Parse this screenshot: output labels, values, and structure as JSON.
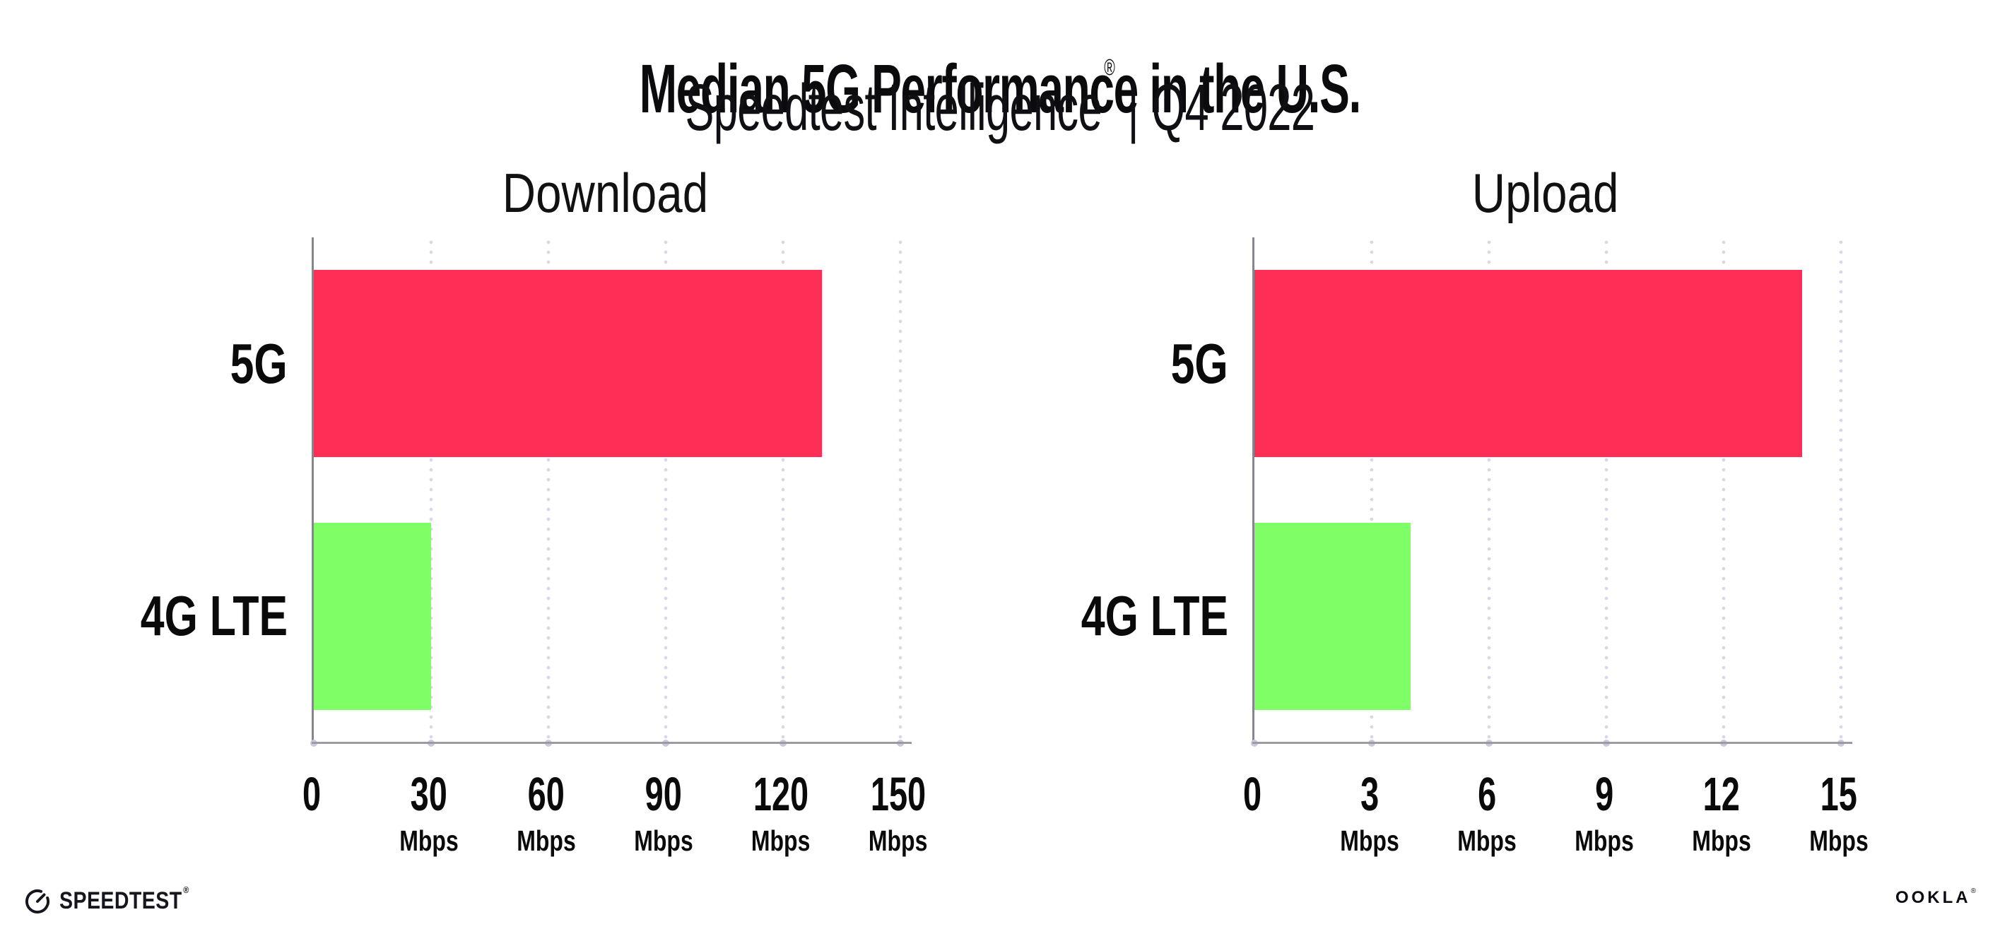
{
  "header": {
    "title": "Median 5G Performance in the U.S.",
    "subtitle": {
      "brand": "Speedtest Intelligence",
      "registered": "®",
      "separator": "|",
      "period": "Q4 2022"
    }
  },
  "chart_data": [
    {
      "type": "bar",
      "orientation": "horizontal",
      "title": "Download",
      "categories": [
        "5G",
        "4G LTE"
      ],
      "values": [
        130,
        30
      ],
      "unit": "Mbps",
      "xlim": [
        0,
        150
      ],
      "xticks": [
        0,
        30,
        60,
        90,
        120,
        150
      ],
      "xtick_unit": "Mbps",
      "colors": [
        "#FF2E56",
        "#7FFE65"
      ],
      "grid": "dotted-vertical",
      "legend": "none"
    },
    {
      "type": "bar",
      "orientation": "horizontal",
      "title": "Upload",
      "categories": [
        "5G",
        "4G LTE"
      ],
      "values": [
        14,
        4
      ],
      "unit": "Mbps",
      "xlim": [
        0,
        15
      ],
      "xticks": [
        0,
        3,
        6,
        9,
        12,
        15
      ],
      "xtick_unit": "Mbps",
      "colors": [
        "#FF2E56",
        "#7FFE65"
      ],
      "grid": "dotted-vertical",
      "legend": "none"
    }
  ],
  "footer": {
    "speedtest": {
      "label": "SPEEDTEST",
      "mark": "®"
    },
    "ookla": {
      "label": "OOKLA",
      "mark": "®"
    }
  },
  "colors": {
    "bar_5g": "#FF2E56",
    "bar_4g_lte": "#7FFE65",
    "axis_line": "#9b9ba3",
    "y_axis_line": "#85858d",
    "gridline_dots": "#d7d8e5",
    "baseline_tick_dots": "#c8cadb",
    "text": "#0b0b0e",
    "background": "#ffffff"
  }
}
